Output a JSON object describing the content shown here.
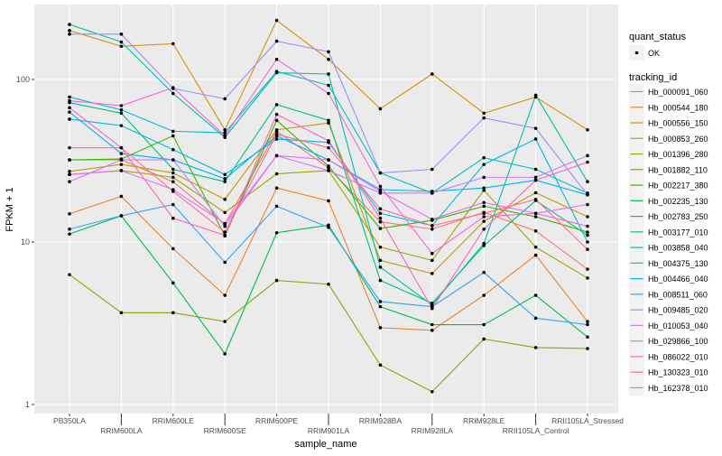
{
  "chart_data": {
    "type": "line",
    "xlabel": "sample_name",
    "ylabel": "FPKM + 1",
    "yscale": "log10",
    "ylim": [
      1,
      250
    ],
    "yticks": [
      1,
      10,
      100
    ],
    "ytick_labels": [
      "1",
      "10",
      "100"
    ],
    "grid": true,
    "legend_position": "right",
    "categories": [
      "PB350LA",
      "RRIM600LA",
      "RRIM600LE",
      "RRIM600SE",
      "RRIM600PE",
      "RRIM901LA",
      "RRIM928BA",
      "RRIM928LA",
      "RRIM928LE",
      "RRII105LA_Control",
      "RRII105LA_Stressed"
    ],
    "shape_legend": {
      "title": "quant_status",
      "entries": [
        "OK"
      ]
    },
    "color_legend_title": "tracking_id",
    "series": [
      {
        "name": "Hb_000091_060",
        "color": "#F8766D",
        "values": [
          32,
          32,
          23.5,
          12.9,
          48,
          28.6,
          13.3,
          12,
          15.2,
          11.7,
          6.8
        ]
      },
      {
        "name": "Hb_000544_180",
        "color": "#EA8331",
        "values": [
          14.9,
          19.1,
          9.1,
          4.7,
          21.5,
          17.9,
          2.97,
          2.86,
          4.7,
          8.3,
          3.24
        ]
      },
      {
        "name": "Hb_000556_150",
        "color": "#D89000",
        "values": [
          200,
          160,
          166,
          49,
          231,
          133,
          66,
          108,
          62,
          78,
          49
        ]
      },
      {
        "name": "Hb_000853_260",
        "color": "#C09B00",
        "values": [
          27.2,
          30,
          26.6,
          18.3,
          49,
          54,
          7.7,
          6.4,
          13.4,
          20.1,
          14.3
        ]
      },
      {
        "name": "Hb_001396_280",
        "color": "#A3A500",
        "values": [
          26,
          27.5,
          25,
          15.2,
          26.3,
          27.5,
          9.3,
          7.7,
          20.8,
          9.3,
          6.0
        ]
      },
      {
        "name": "Hb_001882_110",
        "color": "#7CAE00",
        "values": [
          6.3,
          3.67,
          3.67,
          3.24,
          5.8,
          5.5,
          1.75,
          1.2,
          2.53,
          2.24,
          2.21
        ]
      },
      {
        "name": "Hb_002217_380",
        "color": "#39B600",
        "values": [
          32,
          32.4,
          45,
          10.9,
          56,
          29.3,
          12.1,
          13.6,
          16.6,
          14.3,
          11.5
        ]
      },
      {
        "name": "Hb_002235_130",
        "color": "#00BB4E",
        "values": [
          11.2,
          14.5,
          5.6,
          2.05,
          11.4,
          12.7,
          4.0,
          3.1,
          3.1,
          4.7,
          2.6
        ]
      },
      {
        "name": "Hb_002783_250",
        "color": "#00BF7D",
        "values": [
          72,
          62,
          28,
          23.5,
          70,
          56,
          5.8,
          4.2,
          9.5,
          18,
          11
        ]
      },
      {
        "name": "Hb_003177_010",
        "color": "#00C1A3",
        "values": [
          218,
          170,
          82,
          44,
          110,
          108,
          7.0,
          4.1,
          9.8,
          80,
          23.5
        ]
      },
      {
        "name": "Hb_003858_040",
        "color": "#00BFC4",
        "values": [
          78,
          65,
          48,
          47,
          112,
          92,
          26.6,
          20,
          33,
          28,
          20
        ]
      },
      {
        "name": "Hb_004375_130",
        "color": "#00BAE0",
        "values": [
          57,
          52,
          37,
          26,
          43,
          41,
          15,
          12.6,
          30,
          43,
          10
        ]
      },
      {
        "name": "Hb_004466_040",
        "color": "#00B0F6",
        "values": [
          63,
          35,
          32,
          24.5,
          45,
          32,
          21,
          20.5,
          21.5,
          24,
          19.5
        ]
      },
      {
        "name": "Hb_008511_060",
        "color": "#35A2FF",
        "values": [
          12,
          14.5,
          17,
          7.5,
          16.6,
          12.3,
          4.3,
          4.0,
          6.5,
          3.4,
          3.1
        ]
      },
      {
        "name": "Hb_009485_020",
        "color": "#9590FF",
        "values": [
          190,
          190,
          88,
          76,
          172,
          148,
          26.6,
          28,
          58,
          50,
          19.5
        ]
      },
      {
        "name": "Hb_010053_040",
        "color": "#C77CFF",
        "values": [
          23.5,
          32,
          32,
          12.5,
          34,
          27.5,
          20,
          20,
          25,
          25,
          34
        ]
      },
      {
        "name": "Hb_029866_100",
        "color": "#E76BF3",
        "values": [
          26,
          27.5,
          21,
          13,
          34,
          32,
          20.5,
          13.8,
          17.5,
          15,
          17
        ]
      },
      {
        "name": "Hb_086022_010",
        "color": "#FA62DB",
        "values": [
          74,
          69,
          89,
          45,
          133,
          82,
          22,
          8.5,
          14.3,
          15,
          12.5
        ]
      },
      {
        "name": "Hb_130323_010",
        "color": "#FF62BC",
        "values": [
          67,
          38,
          14,
          11,
          61,
          42,
          14,
          3.9,
          12,
          24,
          31
        ]
      },
      {
        "name": "Hb_162378_010",
        "color": "#FF6C91",
        "values": [
          38,
          38,
          20.5,
          11.5,
          46,
          38,
          16,
          12.6,
          15,
          18.3,
          9
        ]
      }
    ]
  }
}
